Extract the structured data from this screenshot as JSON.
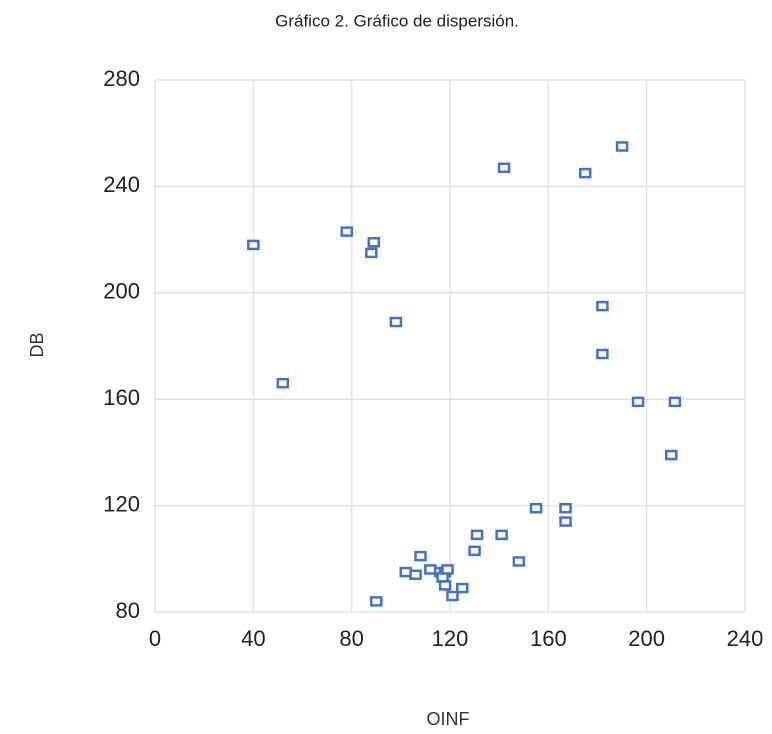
{
  "chart_data": {
    "type": "scatter",
    "title": "Gráfico 2. Gráfico de dispersión.",
    "x_label": "OINF",
    "y_label": "DB",
    "series": [
      {
        "name": "DB",
        "color": "#4472c4",
        "x": [
          40,
          52,
          78,
          89,
          88,
          98,
          90,
          108,
          102,
          106,
          112,
          116,
          118,
          117,
          119,
          118,
          121,
          125,
          130,
          131,
          141,
          148,
          155,
          167,
          167,
          142,
          175,
          190,
          182,
          182,
          196.5,
          211.5,
          210
        ],
        "values": [
          218,
          166,
          223,
          219,
          215,
          189,
          84,
          101,
          95,
          94,
          96,
          95,
          95,
          93,
          96,
          90,
          86,
          89,
          103,
          109,
          109,
          99,
          119,
          119,
          114,
          247,
          245,
          255,
          195,
          177,
          159,
          159,
          139
        ]
      }
    ],
    "xlim": [
      0,
      240
    ],
    "xticks": [
      0,
      40,
      80,
      120,
      160,
      200,
      240
    ],
    "ylim": [
      80,
      280
    ],
    "yticks": [
      80,
      120,
      160,
      200,
      240,
      280
    ],
    "grid": true
  }
}
